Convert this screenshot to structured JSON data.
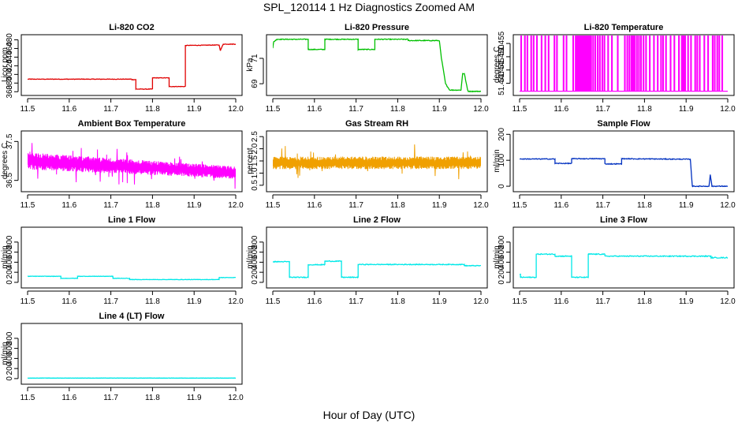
{
  "page": {
    "title": "SPL_120114  1 Hz Diagnostics Zoomed AM",
    "xlabel": "Hour of Day (UTC)"
  },
  "chart_data": [
    {
      "type": "line",
      "title": "Li-820 CO2",
      "ylabel": "Licor ppm",
      "color": "#e00000",
      "xlim": [
        11.5,
        12.0
      ],
      "xticks": [
        "11.5",
        "11.6",
        "11.7",
        "11.8",
        "11.9",
        "12.0"
      ],
      "ylim": [
        355,
        490
      ],
      "yticks": [
        "360",
        "380",
        "400",
        "420",
        "440",
        "460",
        "480"
      ],
      "noise": 0.6,
      "x": [
        11.5,
        11.75,
        11.75,
        11.76,
        11.76,
        11.8,
        11.8,
        11.84,
        11.84,
        11.879,
        11.879,
        11.96,
        11.963,
        11.97,
        12.0
      ],
      "y": [
        389,
        389,
        388,
        388,
        366,
        366,
        392,
        392,
        372,
        372,
        467,
        468,
        455,
        470,
        470
      ]
    },
    {
      "type": "line",
      "title": "Li-820 Pressure",
      "ylabel": "kPa",
      "color": "#00c000",
      "xlim": [
        11.5,
        12.0
      ],
      "xticks": [
        "11.5",
        "11.6",
        "11.7",
        "11.8",
        "11.9",
        "12.0"
      ],
      "ylim": [
        68.2,
        72.8
      ],
      "yticks": [
        "69",
        "71"
      ],
      "noise": 0.03,
      "x": [
        11.5,
        11.502,
        11.51,
        11.585,
        11.585,
        11.625,
        11.625,
        11.705,
        11.705,
        11.745,
        11.745,
        11.825,
        11.825,
        11.9,
        11.905,
        11.915,
        11.925,
        11.952,
        11.956,
        11.96,
        11.968,
        11.97,
        12.0
      ],
      "y": [
        71.8,
        72.3,
        72.5,
        72.5,
        71.7,
        71.7,
        72.5,
        72.5,
        71.7,
        71.7,
        72.5,
        72.5,
        72.4,
        72.4,
        71.0,
        69.0,
        68.5,
        68.5,
        69.8,
        69.8,
        68.5,
        68.4,
        68.4
      ]
    },
    {
      "type": "line",
      "title": "Li-820 Temperature",
      "ylabel": "degrees C",
      "color": "#ff00ff",
      "xlim": [
        11.5,
        12.0
      ],
      "xticks": [
        "11.5",
        "11.6",
        "11.7",
        "11.8",
        "11.9",
        "12.0"
      ],
      "ylim": [
        51.436,
        51.458
      ],
      "yticks": [
        "51.440",
        "51.445",
        "51.450",
        "51.455"
      ],
      "low": 51.437,
      "high": 51.458,
      "spikes": [
        11.503,
        11.512,
        11.518,
        11.527,
        11.533,
        11.541,
        11.552,
        11.561,
        11.569,
        11.583,
        11.589,
        11.605,
        11.612,
        11.628,
        11.634,
        11.637,
        11.64,
        11.643,
        11.646,
        11.649,
        11.652,
        11.655,
        11.658,
        11.661,
        11.664,
        11.667,
        11.671,
        11.676,
        11.681,
        11.687,
        11.692,
        11.698,
        11.703,
        11.712,
        11.721,
        11.735,
        11.752,
        11.758,
        11.763,
        11.768,
        11.772,
        11.776,
        11.781,
        11.786,
        11.791,
        11.797,
        11.803,
        11.812,
        11.822,
        11.831,
        11.839,
        11.844,
        11.851,
        11.862,
        11.871,
        11.882,
        11.889,
        11.893,
        11.897,
        11.904,
        11.911,
        11.921,
        11.926,
        11.932,
        11.943,
        11.952,
        11.963,
        11.968,
        11.974,
        11.979,
        11.986
      ]
    },
    {
      "type": "line",
      "title": "Ambient Box Temperature",
      "ylabel": "degrees C",
      "color": "#ff00ff",
      "xlim": [
        11.5,
        12.0
      ],
      "xticks": [
        "11.5",
        "11.6",
        "11.7",
        "11.8",
        "11.9",
        "12.0"
      ],
      "ylim": [
        36.25,
        37.75
      ],
      "yticks": [
        "36.5",
        "37.5"
      ],
      "band": {
        "x": [
          11.5,
          12.0
        ],
        "mid": [
          37.0,
          36.7
        ],
        "amp": [
          0.22,
          0.16
        ],
        "spike": 0.28
      }
    },
    {
      "type": "line",
      "title": "Gas Stream RH",
      "ylabel": "percent",
      "color": "#f0a000",
      "xlim": [
        11.5,
        12.0
      ],
      "xticks": [
        "11.5",
        "11.6",
        "11.7",
        "11.8",
        "11.9",
        "12.0"
      ],
      "ylim": [
        0.3,
        2.7
      ],
      "yticks": [
        "0.5",
        "1.0",
        "1.5",
        "2.0",
        "2.5"
      ],
      "band": {
        "x": [
          11.5,
          12.0
        ],
        "mid": [
          1.42,
          1.42
        ],
        "amp": [
          0.26,
          0.26
        ],
        "spike": 0.5
      }
    },
    {
      "type": "line",
      "title": "Sample Flow",
      "ylabel": "ml/min",
      "color": "#0030c0",
      "xlim": [
        11.5,
        12.0
      ],
      "xticks": [
        "11.5",
        "11.6",
        "11.7",
        "11.8",
        "11.9",
        "12.0"
      ],
      "ylim": [
        -15,
        210
      ],
      "yticks": [
        "0",
        "100",
        "200"
      ],
      "noise": 1.5,
      "x": [
        11.5,
        11.585,
        11.585,
        11.625,
        11.625,
        11.705,
        11.705,
        11.745,
        11.745,
        11.91,
        11.915,
        11.955,
        11.958,
        11.962,
        11.965,
        12.0
      ],
      "y": [
        105,
        105,
        88,
        88,
        106,
        106,
        86,
        86,
        106,
        104,
        0,
        0,
        45,
        0,
        0,
        0
      ]
    },
    {
      "type": "line",
      "title": "Line 1 Flow",
      "ylabel": "ml/min",
      "color": "#00e8e8",
      "xlim": [
        11.5,
        12.0
      ],
      "xticks": [
        "11.5",
        "11.6",
        "11.7",
        "11.8",
        "11.9",
        "12.0"
      ],
      "ylim": [
        -80,
        1080
      ],
      "yticks": [
        "0",
        "200",
        "400",
        "600",
        "800"
      ],
      "noise": 4,
      "x": [
        11.5,
        11.58,
        11.58,
        11.62,
        11.62,
        11.705,
        11.705,
        11.745,
        11.745,
        11.96,
        11.96,
        12.0
      ],
      "y": [
        120,
        120,
        80,
        80,
        120,
        120,
        80,
        80,
        55,
        55,
        95,
        95
      ]
    },
    {
      "type": "line",
      "title": "Line 2 Flow",
      "ylabel": "ml/min",
      "color": "#00e8e8",
      "xlim": [
        11.5,
        12.0
      ],
      "xticks": [
        "11.5",
        "11.6",
        "11.7",
        "11.8",
        "11.9",
        "12.0"
      ],
      "ylim": [
        -80,
        1080
      ],
      "yticks": [
        "0",
        "200",
        "400",
        "600",
        "800"
      ],
      "noise": 8,
      "x": [
        11.5,
        11.54,
        11.54,
        11.585,
        11.585,
        11.625,
        11.625,
        11.665,
        11.665,
        11.705,
        11.705,
        11.96,
        11.96,
        12.0
      ],
      "y": [
        410,
        410,
        100,
        100,
        350,
        350,
        420,
        420,
        100,
        100,
        355,
        355,
        330,
        330
      ]
    },
    {
      "type": "line",
      "title": "Line 3 Flow",
      "ylabel": "ml/min",
      "color": "#00e8e8",
      "xlim": [
        11.5,
        12.0
      ],
      "xticks": [
        "11.5",
        "11.6",
        "11.7",
        "11.8",
        "11.9",
        "12.0"
      ],
      "ylim": [
        -80,
        1080
      ],
      "yticks": [
        "0",
        "200",
        "400",
        "600",
        "800"
      ],
      "noise": 9,
      "x": [
        11.5,
        11.502,
        11.502,
        11.54,
        11.54,
        11.585,
        11.585,
        11.625,
        11.625,
        11.665,
        11.665,
        11.705,
        11.705,
        11.96,
        11.96,
        12.0
      ],
      "y": [
        160,
        160,
        100,
        100,
        560,
        560,
        520,
        520,
        100,
        100,
        560,
        560,
        520,
        520,
        490,
        490
      ]
    },
    {
      "type": "line",
      "title": "Line 4 (LT) Flow",
      "ylabel": "ml/min",
      "color": "#00e8e8",
      "xlim": [
        11.5,
        12.0
      ],
      "xticks": [
        "11.5",
        "11.6",
        "11.7",
        "11.8",
        "11.9",
        "12.0"
      ],
      "ylim": [
        -80,
        1080
      ],
      "yticks": [
        "0",
        "200",
        "400",
        "600",
        "800"
      ],
      "noise": 2,
      "x": [
        11.5,
        12.0
      ],
      "y": [
        10,
        10
      ]
    }
  ]
}
